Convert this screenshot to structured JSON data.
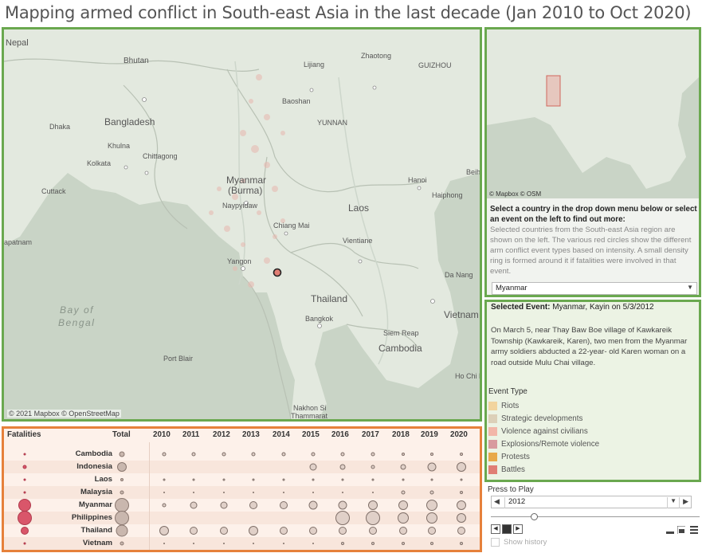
{
  "title": "Mapping armed conflict in South-east Asia in the last decade (Jan 2010 to Oct 2020)",
  "map": {
    "credit": "© 2021 Mapbox © OpenStreetMap",
    "labels": {
      "nepal": "Nepal",
      "bhutan": "Bhutan",
      "lijiang": "Lijiang",
      "zhaotong": "Zhaotong",
      "guizhou": "GUIZHOU",
      "dhaka": "Dhaka",
      "bangladesh": "Bangladesh",
      "baoshan": "Baoshan",
      "yunnan": "YUNNAN",
      "khulna": "Khulna",
      "chittagong": "Chittagong",
      "kolkata": "Kolkata",
      "beih": "Beih",
      "myanmar": "Myanmar",
      "burma": "(Burma)",
      "cuttack": "Cuttack",
      "hanoi": "Hanoi",
      "haiphong": "Haiphong",
      "naypyidaw": "Naypyidaw",
      "laos": "Laos",
      "chiangmai": "Chiang Mai",
      "vientiane": "Vientiane",
      "patnam": "apatnam",
      "yangon": "Yangon",
      "danang": "Da Nang",
      "thailand": "Thailand",
      "bay": "Bay of",
      "bengal": "Bengal",
      "bangkok": "Bangkok",
      "siemreap": "Siem Reap",
      "vietnam": "Vietnam",
      "cambodia": "Cambodia",
      "portblair": "Port Blair",
      "hochiminh": "Ho Chi Minh",
      "nakhon": "Nakhon Si",
      "thammarat": "Thammarat"
    }
  },
  "inset": {
    "credit": "© Mapbox © OSM",
    "prompt": "Select a country in the drop down menu below or select an event on the left to find out more:",
    "description": "Selected countries from the South-east Asia region are shown on the left. The various red circles show the different arm conflict event types based on intensity. A small density ring is formed around it if fatalities were involved in that event.",
    "dropdown_value": "Myanmar"
  },
  "event": {
    "label": "Selected Event:",
    "value": "Myanmar, Kayin on 5/3/2012",
    "description": "On March 5, near Thay Baw Boe village of Kawkareik Township (Kawkareik, Karen), two men from the Myanmar army soldiers abducted a 22-year- old Karen woman on a road outside Mulu Chai village.",
    "legend_title": "Event Type",
    "legend": [
      {
        "label": "Riots",
        "color": "#f2d49e"
      },
      {
        "label": "Strategic developments",
        "color": "#dcd0b8"
      },
      {
        "label": "Violence against civilians",
        "color": "#f2b6a8"
      },
      {
        "label": "Explosions/Remote violence",
        "color": "#d89a9e"
      },
      {
        "label": "Protests",
        "color": "#e8a94a"
      },
      {
        "label": "Battles",
        "color": "#e07e74"
      }
    ]
  },
  "fatalities": {
    "headers": {
      "fatalities": "Fatalities",
      "total": "Total"
    },
    "years": [
      "2010",
      "2011",
      "2012",
      "2013",
      "2014",
      "2015",
      "2016",
      "2017",
      "2018",
      "2019",
      "2020"
    ],
    "countries": [
      "Cambodia",
      "Indonesia",
      "Laos",
      "Malaysia",
      "Myanmar",
      "Philippines",
      "Thailand",
      "Vietnam"
    ]
  },
  "player": {
    "label": "Press to Play",
    "year": "2012",
    "show_history": "Show history"
  }
}
